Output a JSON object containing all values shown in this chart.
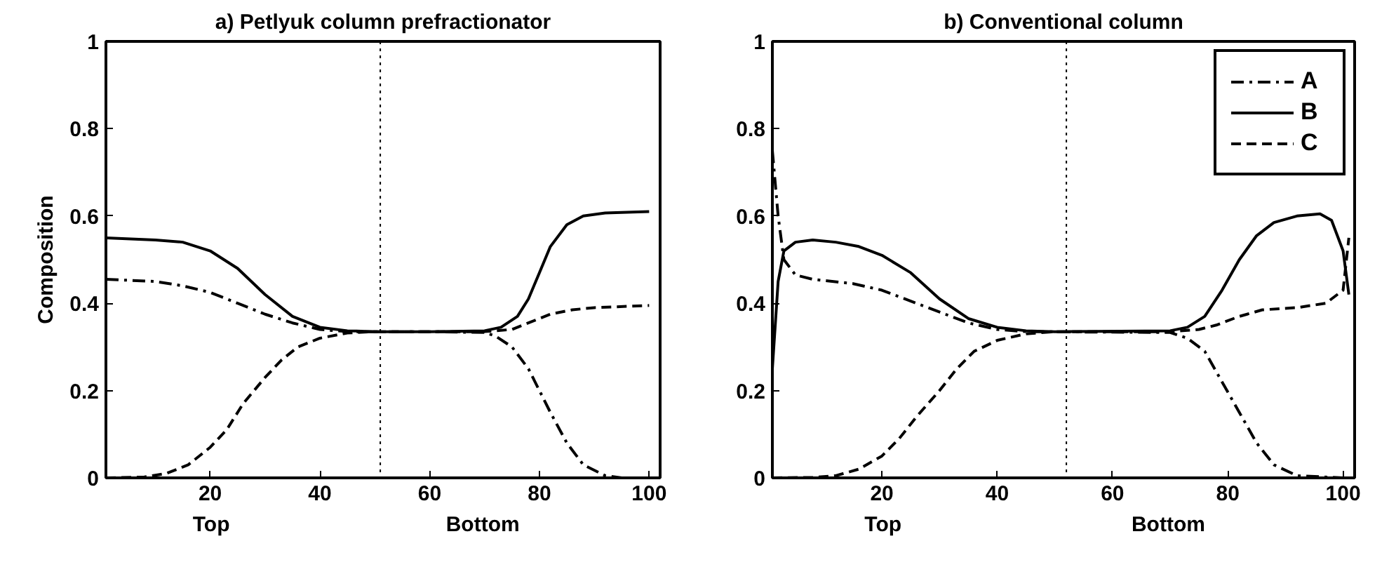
{
  "chart_data": [
    {
      "type": "line",
      "title": "a) Petlyuk column prefractionator",
      "ylabel": "Composition",
      "xlim": [
        1,
        102
      ],
      "ylim": [
        0,
        1
      ],
      "xticks": [
        20,
        40,
        60,
        80,
        100
      ],
      "yticks": [
        0,
        0.2,
        0.4,
        0.6,
        0.8,
        1
      ],
      "grid": false,
      "legend": false,
      "annotations": [
        "Top",
        "Bottom"
      ],
      "ref_lines": [
        {
          "axis": "x",
          "value": 51,
          "color": "#000000",
          "line_style": "dotted"
        }
      ],
      "series": [
        {
          "color": "#000000",
          "line_style": "dashdot",
          "x": [
            1,
            10,
            15,
            20,
            25,
            30,
            35,
            40,
            45,
            60,
            70,
            72,
            75,
            78,
            80,
            82,
            85,
            88,
            92,
            95,
            100
          ],
          "values": [
            0.455,
            0.45,
            0.44,
            0.425,
            0.4,
            0.375,
            0.355,
            0.34,
            0.335,
            0.335,
            0.333,
            0.325,
            0.3,
            0.25,
            0.2,
            0.15,
            0.08,
            0.03,
            0.005,
            0,
            0
          ]
        },
        {
          "color": "#000000",
          "line_style": "solid",
          "x": [
            1,
            10,
            15,
            20,
            25,
            30,
            35,
            40,
            45,
            50,
            60,
            70,
            73,
            76,
            78,
            80,
            82,
            85,
            88,
            92,
            100
          ],
          "values": [
            0.55,
            0.545,
            0.54,
            0.52,
            0.48,
            0.42,
            0.37,
            0.345,
            0.337,
            0.335,
            0.335,
            0.337,
            0.345,
            0.37,
            0.41,
            0.47,
            0.53,
            0.58,
            0.6,
            0.607,
            0.61
          ]
        },
        {
          "color": "#000000",
          "line_style": "dashed",
          "x": [
            1,
            8,
            12,
            16,
            20,
            23,
            26,
            30,
            33,
            36,
            40,
            45,
            50,
            70,
            75,
            78,
            82,
            86,
            90,
            100
          ],
          "values": [
            0,
            0.002,
            0.01,
            0.03,
            0.07,
            0.11,
            0.17,
            0.23,
            0.27,
            0.3,
            0.32,
            0.332,
            0.335,
            0.335,
            0.34,
            0.355,
            0.375,
            0.385,
            0.39,
            0.395
          ]
        }
      ]
    },
    {
      "type": "line",
      "title": "b) Conventional column",
      "xlim": [
        1,
        102
      ],
      "ylim": [
        0,
        1
      ],
      "xticks": [
        20,
        40,
        60,
        80,
        100
      ],
      "yticks": [
        0,
        0.2,
        0.4,
        0.6,
        0.8,
        1
      ],
      "grid": false,
      "legend": "top right",
      "annotations": [
        "Top",
        "Bottom"
      ],
      "ref_lines": [
        {
          "axis": "x",
          "value": 52,
          "color": "#000000",
          "line_style": "dotted"
        }
      ],
      "series": [
        {
          "name": "A",
          "color": "#000000",
          "line_style": "dashdot",
          "x": [
            1,
            2,
            3,
            5,
            8,
            15,
            20,
            25,
            30,
            35,
            40,
            45,
            70,
            73,
            76,
            79,
            82,
            85,
            88,
            92,
            100
          ],
          "values": [
            0.75,
            0.6,
            0.5,
            0.465,
            0.455,
            0.445,
            0.43,
            0.405,
            0.38,
            0.355,
            0.34,
            0.335,
            0.333,
            0.32,
            0.29,
            0.22,
            0.15,
            0.08,
            0.03,
            0.005,
            0
          ]
        },
        {
          "name": "B",
          "color": "#000000",
          "line_style": "solid",
          "x": [
            1,
            2,
            3,
            5,
            8,
            12,
            16,
            20,
            25,
            30,
            35,
            40,
            45,
            50,
            70,
            73,
            76,
            79,
            82,
            85,
            88,
            92,
            96,
            98,
            100,
            101
          ],
          "values": [
            0.25,
            0.45,
            0.52,
            0.54,
            0.545,
            0.54,
            0.53,
            0.51,
            0.47,
            0.41,
            0.365,
            0.345,
            0.337,
            0.335,
            0.337,
            0.345,
            0.37,
            0.43,
            0.5,
            0.555,
            0.585,
            0.6,
            0.605,
            0.59,
            0.52,
            0.42
          ]
        },
        {
          "name": "C",
          "color": "#000000",
          "line_style": "dashed",
          "x": [
            1,
            8,
            12,
            16,
            20,
            23,
            26,
            30,
            33,
            36,
            40,
            45,
            50,
            70,
            75,
            78,
            82,
            86,
            92,
            97,
            100,
            101
          ],
          "values": [
            0,
            0.001,
            0.005,
            0.02,
            0.05,
            0.09,
            0.14,
            0.2,
            0.25,
            0.29,
            0.315,
            0.33,
            0.335,
            0.335,
            0.34,
            0.35,
            0.37,
            0.385,
            0.39,
            0.4,
            0.43,
            0.55
          ]
        }
      ]
    }
  ]
}
